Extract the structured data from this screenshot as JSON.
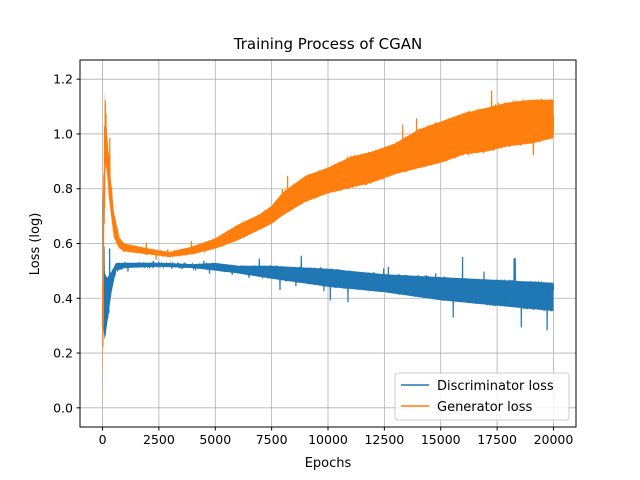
{
  "chart_data": {
    "type": "line",
    "title": "Training Process of CGAN",
    "xlabel": "Epochs",
    "ylabel": "Loss (log)",
    "xlim": [
      -1000,
      21000
    ],
    "ylim": [
      -0.07,
      1.27
    ],
    "xticks": [
      0,
      2500,
      5000,
      7500,
      10000,
      12500,
      15000,
      17500,
      20000
    ],
    "yticks": [
      0.0,
      0.2,
      0.4,
      0.6,
      0.8,
      1.0,
      1.2
    ],
    "xtick_labels": [
      "0",
      "2500",
      "5000",
      "7500",
      "10000",
      "12500",
      "15000",
      "17500",
      "20000"
    ],
    "ytick_labels": [
      "0.0",
      "0.2",
      "0.4",
      "0.6",
      "0.8",
      "1.0",
      "1.2"
    ],
    "grid": true,
    "legend_position": "lower-right",
    "series": [
      {
        "name": "Discriminator loss",
        "color": "#1f77b4",
        "x": [
          0,
          100,
          200,
          400,
          600,
          1000,
          2500,
          4000,
          5000,
          6000,
          7500,
          10000,
          12500,
          15000,
          17500,
          20000
        ],
        "low": [
          0.3,
          0.24,
          0.3,
          0.42,
          0.5,
          0.51,
          0.515,
          0.51,
          0.5,
          0.49,
          0.47,
          0.44,
          0.42,
          0.39,
          0.37,
          0.35
        ],
        "high": [
          0.82,
          0.5,
          0.48,
          0.5,
          0.53,
          0.53,
          0.53,
          0.525,
          0.53,
          0.52,
          0.52,
          0.51,
          0.49,
          0.48,
          0.47,
          0.46
        ]
      },
      {
        "name": "Generator loss",
        "color": "#ff7f0e",
        "x": [
          0,
          100,
          200,
          300,
          500,
          750,
          1000,
          2500,
          3000,
          4000,
          5000,
          6000,
          7000,
          7500,
          8000,
          9000,
          10000,
          11000,
          12000,
          13000,
          14000,
          15000,
          16000,
          17000,
          18000,
          19000,
          20000
        ],
        "low": [
          0.0,
          0.9,
          0.85,
          0.75,
          0.62,
          0.58,
          0.57,
          0.555,
          0.55,
          0.56,
          0.58,
          0.61,
          0.65,
          0.67,
          0.7,
          0.75,
          0.78,
          0.8,
          0.82,
          0.85,
          0.87,
          0.89,
          0.92,
          0.93,
          0.95,
          0.96,
          0.98
        ],
        "high": [
          0.45,
          1.16,
          1.0,
          0.9,
          0.72,
          0.62,
          0.6,
          0.575,
          0.57,
          0.59,
          0.62,
          0.67,
          0.71,
          0.74,
          0.79,
          0.85,
          0.88,
          0.92,
          0.94,
          0.97,
          1.02,
          1.05,
          1.08,
          1.1,
          1.12,
          1.13,
          1.13
        ]
      }
    ]
  }
}
